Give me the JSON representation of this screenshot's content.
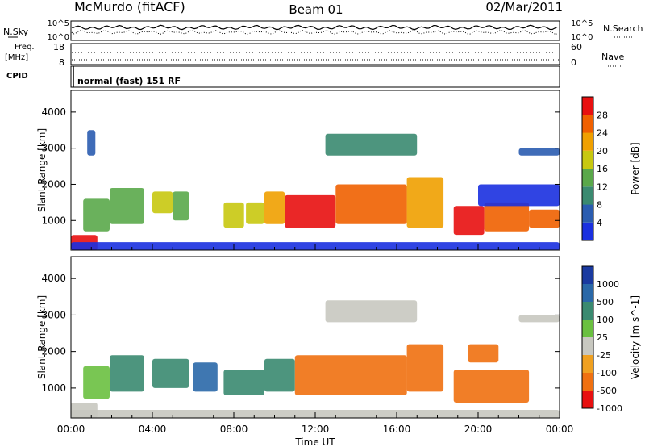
{
  "header": {
    "station": "McMurdo (fitACF)",
    "beam": "Beam 01",
    "date": "02/Mar/2011"
  },
  "noise_panel": {
    "left_label": "N.Sky",
    "right_label": "N.Search",
    "left_ticks": [
      "10^5",
      "10^0"
    ],
    "right_ticks": [
      "10^5",
      "10^0"
    ]
  },
  "freq_panel": {
    "left_label_1": "Freq.",
    "left_label_2": "[MHz]",
    "right_label": "Nave",
    "left_ticks": [
      "18",
      "8"
    ],
    "right_ticks": [
      "60",
      "0"
    ]
  },
  "cpid_panel": {
    "label": "CPID",
    "text": "normal (fast) 151 RF"
  },
  "chart_data": [
    {
      "type": "heatmap",
      "title": "",
      "xlabel": "Time UT",
      "ylabel": "Slant Range [km]",
      "x_ticks": [
        "00:00",
        "04:00",
        "08:00",
        "12:00",
        "16:00",
        "20:00",
        "00:00"
      ],
      "x_range_hours": [
        0,
        24
      ],
      "y_ticks": [
        1000,
        2000,
        3000,
        4000
      ],
      "ylim": [
        180,
        4600
      ],
      "colorbar": {
        "label": "Power [dB]",
        "ticks": [
          4,
          8,
          12,
          16,
          20,
          24,
          28
        ],
        "range": [
          0,
          32
        ],
        "colors": [
          "#1a30e0",
          "#2a5cb0",
          "#3a8a70",
          "#5aa84a",
          "#c8c810",
          "#f0a000",
          "#f06000",
          "#e81010"
        ]
      },
      "regions": [
        {
          "t0": 0.0,
          "t1": 1.3,
          "r0": 180,
          "r1": 600,
          "level": 7
        },
        {
          "t0": 0.6,
          "t1": 1.9,
          "r0": 700,
          "r1": 1600,
          "level": 3
        },
        {
          "t0": 1.9,
          "t1": 3.6,
          "r0": 900,
          "r1": 1900,
          "level": 3
        },
        {
          "t0": 4.0,
          "t1": 5.0,
          "r0": 1200,
          "r1": 1800,
          "level": 4
        },
        {
          "t0": 5.0,
          "t1": 5.8,
          "r0": 1000,
          "r1": 1800,
          "level": 3
        },
        {
          "t0": 7.5,
          "t1": 8.5,
          "r0": 800,
          "r1": 1500,
          "level": 4
        },
        {
          "t0": 8.6,
          "t1": 9.5,
          "r0": 900,
          "r1": 1500,
          "level": 4
        },
        {
          "t0": 9.5,
          "t1": 10.5,
          "r0": 900,
          "r1": 1800,
          "level": 5
        },
        {
          "t0": 10.5,
          "t1": 13.0,
          "r0": 800,
          "r1": 1700,
          "level": 7
        },
        {
          "t0": 13.0,
          "t1": 16.5,
          "r0": 900,
          "r1": 2000,
          "level": 6
        },
        {
          "t0": 16.5,
          "t1": 18.3,
          "r0": 800,
          "r1": 2200,
          "level": 5
        },
        {
          "t0": 18.8,
          "t1": 20.3,
          "r0": 600,
          "r1": 1400,
          "level": 7
        },
        {
          "t0": 20.3,
          "t1": 22.5,
          "r0": 700,
          "r1": 1500,
          "level": 6
        },
        {
          "t0": 22.5,
          "t1": 24.0,
          "r0": 800,
          "r1": 1300,
          "level": 6
        },
        {
          "t0": 20.0,
          "t1": 24.0,
          "r0": 1400,
          "r1": 2000,
          "level": 0
        },
        {
          "t0": 12.5,
          "t1": 17.0,
          "r0": 2800,
          "r1": 3400,
          "level": 2
        },
        {
          "t0": 22.0,
          "t1": 24.0,
          "r0": 2800,
          "r1": 3000,
          "level": 1
        },
        {
          "t0": 0.8,
          "t1": 1.2,
          "r0": 2800,
          "r1": 3500,
          "level": 1
        },
        {
          "t0": 0.0,
          "t1": 24.0,
          "r0": 180,
          "r1": 400,
          "level": 0
        }
      ]
    },
    {
      "type": "heatmap",
      "title": "",
      "xlabel": "Time UT",
      "ylabel": "Slant Range [km]",
      "x_ticks": [
        "00:00",
        "04:00",
        "08:00",
        "12:00",
        "16:00",
        "20:00",
        "00:00"
      ],
      "x_range_hours": [
        0,
        24
      ],
      "y_ticks": [
        1000,
        2000,
        3000,
        4000
      ],
      "ylim": [
        180,
        4600
      ],
      "colorbar": {
        "label": "Velocity [m s^-1]",
        "ticks": [
          1000,
          500,
          100,
          25,
          -25,
          -100,
          -500,
          -1000
        ],
        "colors": [
          "#1a3aa0",
          "#2a68a8",
          "#3a8a70",
          "#6ac040",
          "#c8c8c0",
          "#f0a020",
          "#f07010",
          "#e81010"
        ]
      },
      "regions": [
        {
          "t0": 0.0,
          "t1": 1.3,
          "r0": 180,
          "r1": 600,
          "level": 4
        },
        {
          "t0": 0.6,
          "t1": 1.9,
          "r0": 700,
          "r1": 1600,
          "level": 3
        },
        {
          "t0": 1.9,
          "t1": 3.6,
          "r0": 900,
          "r1": 1900,
          "level": 2
        },
        {
          "t0": 4.0,
          "t1": 5.8,
          "r0": 1000,
          "r1": 1800,
          "level": 2
        },
        {
          "t0": 6.0,
          "t1": 7.2,
          "r0": 900,
          "r1": 1700,
          "level": 1
        },
        {
          "t0": 7.5,
          "t1": 9.5,
          "r0": 800,
          "r1": 1500,
          "level": 2
        },
        {
          "t0": 9.5,
          "t1": 11.0,
          "r0": 900,
          "r1": 1800,
          "level": 2
        },
        {
          "t0": 11.0,
          "t1": 16.5,
          "r0": 800,
          "r1": 1900,
          "level": 6
        },
        {
          "t0": 16.5,
          "t1": 18.3,
          "r0": 900,
          "r1": 2200,
          "level": 6
        },
        {
          "t0": 18.8,
          "t1": 22.5,
          "r0": 600,
          "r1": 1500,
          "level": 6
        },
        {
          "t0": 19.5,
          "t1": 21.0,
          "r0": 1700,
          "r1": 2200,
          "level": 6
        },
        {
          "t0": 12.5,
          "t1": 17.0,
          "r0": 2800,
          "r1": 3400,
          "level": 4
        },
        {
          "t0": 22.0,
          "t1": 24.0,
          "r0": 2800,
          "r1": 3000,
          "level": 4
        },
        {
          "t0": 0.0,
          "t1": 24.0,
          "r0": 180,
          "r1": 400,
          "level": 4
        }
      ]
    }
  ]
}
